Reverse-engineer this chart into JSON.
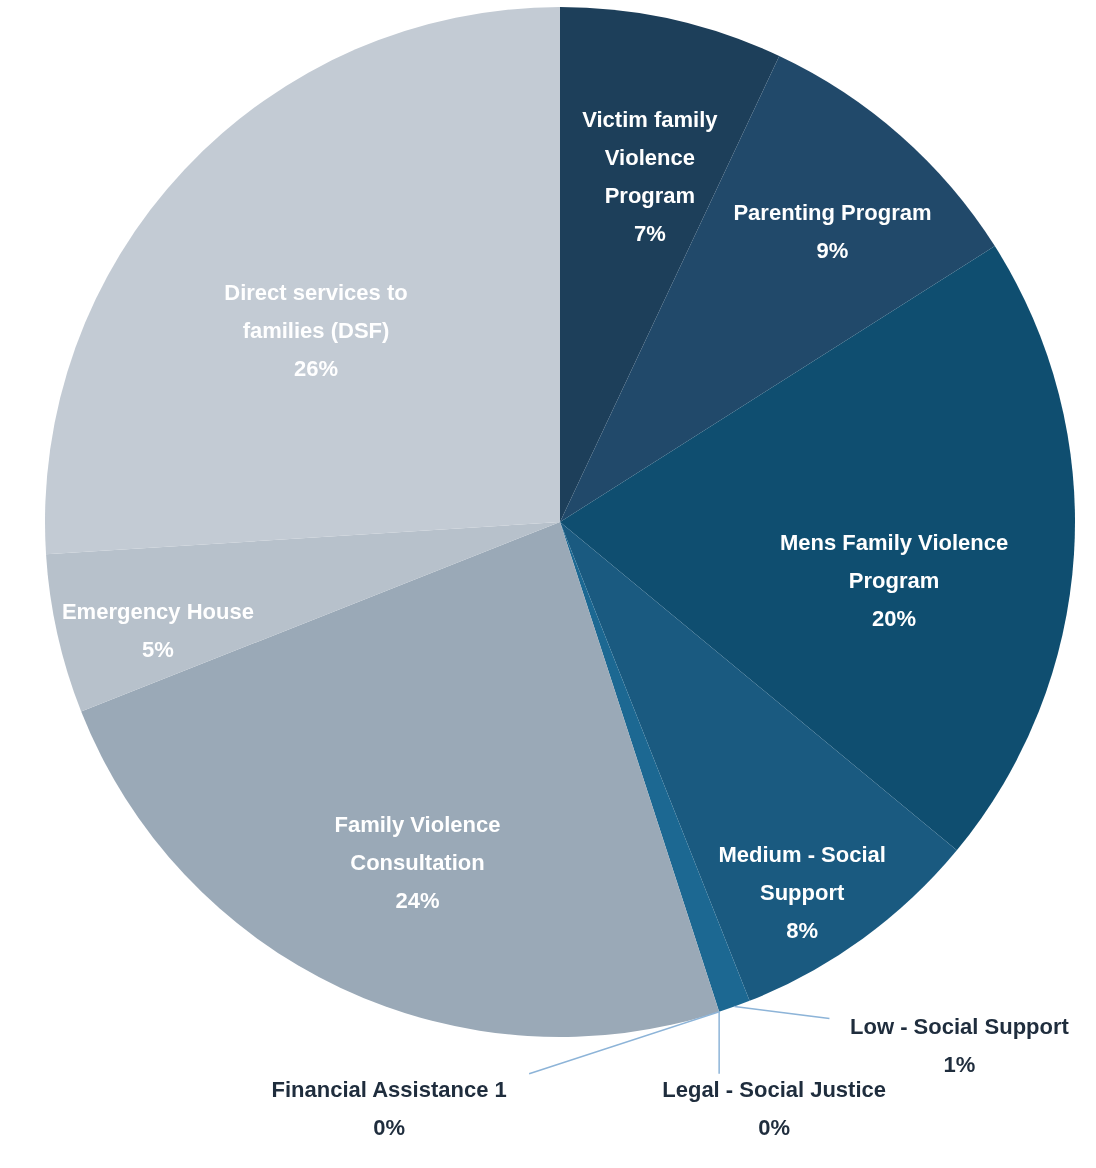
{
  "chart_data": {
    "type": "pie",
    "categories": [
      "Victim family Violence Program",
      "Parenting Program",
      "Mens Family Violence Program",
      "Medium - Social Support",
      "Low - Social Support",
      "Legal - Social Justice",
      "Financial Assistance 1",
      "Family Violence Consultation",
      "Emergency House",
      "Direct services to families (DSF)"
    ],
    "values": [
      7,
      9,
      20,
      8,
      1,
      0,
      0,
      24,
      5,
      26
    ],
    "value_labels": [
      "7%",
      "9%",
      "20%",
      "8%",
      "1%",
      "0%",
      "0%",
      "24%",
      "5%",
      "26%"
    ],
    "colors": [
      "#1d3f5a",
      "#21496a",
      "#0f4e70",
      "#1a5a80",
      "#1c6892",
      "#5d7c92",
      "#8196a9",
      "#9aa9b7",
      "#b7c1cb",
      "#c3cbd4"
    ]
  }
}
